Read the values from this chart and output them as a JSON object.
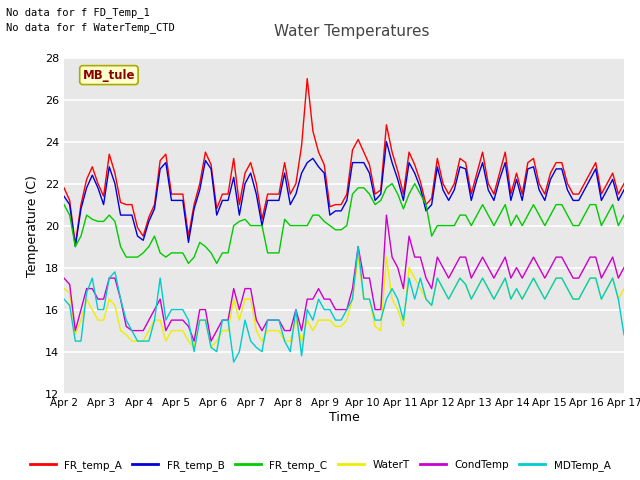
{
  "title": "Water Temperatures",
  "xlabel": "Time",
  "ylabel": "Temperature (C)",
  "ylim": [
    12,
    28
  ],
  "background_color": "#e8e8e8",
  "annotations": [
    "No data for f FD_Temp_1",
    "No data for f WaterTemp_CTD"
  ],
  "mb_tule_label": "MB_tule",
  "x_tick_labels": [
    "Apr 2",
    "Apr 3",
    "Apr 4",
    "Apr 5",
    "Apr 6",
    "Apr 7",
    "Apr 8",
    "Apr 9",
    "Apr 10",
    "Apr 11",
    "Apr 12",
    "Apr 13",
    "Apr 14",
    "Apr 15",
    "Apr 16",
    "Apr 17"
  ],
  "series": {
    "FR_temp_A": {
      "color": "#ff0000",
      "values": [
        21.8,
        21.2,
        19.1,
        21.0,
        22.2,
        22.8,
        22.0,
        21.4,
        23.4,
        22.5,
        21.1,
        21.0,
        21.0,
        19.9,
        19.5,
        20.4,
        21.0,
        23.1,
        23.4,
        21.5,
        21.5,
        21.5,
        19.5,
        21.0,
        22.0,
        23.5,
        22.9,
        20.8,
        21.5,
        21.5,
        23.2,
        21.0,
        22.5,
        23.0,
        22.0,
        20.3,
        21.5,
        21.5,
        21.5,
        23.0,
        21.5,
        22.0,
        23.8,
        27.0,
        24.5,
        23.5,
        22.9,
        20.9,
        21.0,
        21.0,
        21.5,
        23.6,
        24.1,
        23.5,
        22.9,
        21.5,
        21.7,
        24.8,
        23.5,
        22.6,
        21.5,
        23.5,
        22.9,
        22.1,
        21.0,
        21.3,
        23.2,
        22.0,
        21.5,
        22.0,
        23.2,
        23.0,
        21.5,
        22.5,
        23.5,
        22.0,
        21.5,
        22.5,
        23.5,
        21.5,
        22.5,
        21.5,
        23.0,
        23.2,
        22.0,
        21.5,
        22.5,
        23.0,
        23.0,
        22.0,
        21.5,
        21.5,
        22.0,
        22.5,
        23.0,
        21.5,
        22.0,
        22.5,
        21.5,
        22.0
      ]
    },
    "FR_temp_B": {
      "color": "#0000dd",
      "values": [
        21.4,
        21.0,
        19.0,
        20.8,
        21.8,
        22.4,
        21.8,
        21.0,
        22.8,
        22.0,
        20.5,
        20.5,
        20.5,
        19.5,
        19.3,
        20.2,
        20.8,
        22.7,
        23.0,
        21.2,
        21.2,
        21.2,
        19.2,
        20.8,
        21.7,
        23.1,
        22.7,
        20.5,
        21.2,
        21.2,
        22.3,
        20.5,
        22.0,
        22.5,
        21.5,
        20.0,
        21.2,
        21.2,
        21.2,
        22.5,
        21.0,
        21.5,
        22.5,
        23.0,
        23.2,
        22.8,
        22.5,
        20.5,
        20.7,
        20.7,
        21.2,
        23.0,
        23.0,
        23.0,
        22.5,
        21.2,
        21.5,
        24.0,
        23.0,
        22.2,
        21.2,
        23.0,
        22.5,
        21.8,
        20.7,
        21.0,
        22.8,
        21.7,
        21.2,
        21.7,
        22.8,
        22.7,
        21.2,
        22.2,
        23.0,
        21.7,
        21.2,
        22.2,
        23.0,
        21.2,
        22.2,
        21.2,
        22.7,
        22.8,
        21.7,
        21.2,
        22.2,
        22.7,
        22.7,
        21.7,
        21.2,
        21.2,
        21.7,
        22.2,
        22.7,
        21.2,
        21.7,
        22.2,
        21.2,
        21.7
      ]
    },
    "FR_temp_C": {
      "color": "#00cc00",
      "values": [
        21.0,
        20.5,
        19.0,
        19.5,
        20.5,
        20.3,
        20.2,
        20.2,
        20.5,
        20.2,
        19.0,
        18.5,
        18.5,
        18.5,
        18.7,
        19.0,
        19.5,
        18.7,
        18.5,
        18.7,
        18.7,
        18.7,
        18.2,
        18.5,
        19.2,
        19.0,
        18.7,
        18.2,
        18.7,
        18.7,
        20.0,
        20.2,
        20.3,
        20.0,
        20.0,
        20.0,
        18.7,
        18.7,
        18.7,
        20.3,
        20.0,
        20.0,
        20.0,
        20.0,
        20.5,
        20.5,
        20.2,
        20.0,
        19.8,
        19.8,
        20.0,
        21.5,
        21.8,
        21.8,
        21.5,
        21.0,
        21.2,
        21.8,
        22.0,
        21.5,
        20.8,
        21.5,
        22.0,
        21.5,
        21.0,
        19.5,
        20.0,
        20.0,
        20.0,
        20.0,
        20.5,
        20.5,
        20.0,
        20.5,
        21.0,
        20.5,
        20.0,
        20.5,
        21.0,
        20.0,
        20.5,
        20.0,
        20.5,
        21.0,
        20.5,
        20.0,
        20.5,
        21.0,
        21.0,
        20.5,
        20.0,
        20.0,
        20.5,
        21.0,
        21.0,
        20.0,
        20.5,
        21.0,
        20.0,
        20.5
      ]
    },
    "WaterT": {
      "color": "#eeee00",
      "values": [
        17.0,
        16.8,
        14.8,
        15.5,
        16.5,
        16.0,
        15.5,
        15.5,
        16.5,
        16.2,
        15.0,
        14.8,
        14.5,
        14.5,
        14.5,
        15.0,
        15.5,
        15.5,
        14.5,
        15.0,
        15.0,
        15.0,
        14.5,
        14.2,
        15.5,
        15.5,
        14.2,
        14.5,
        15.0,
        15.0,
        16.5,
        15.5,
        16.5,
        16.5,
        15.0,
        14.5,
        15.0,
        15.0,
        15.0,
        14.5,
        14.5,
        15.5,
        14.5,
        15.5,
        15.0,
        15.5,
        15.5,
        15.5,
        15.2,
        15.2,
        15.5,
        16.5,
        18.5,
        16.5,
        16.5,
        15.2,
        15.0,
        18.5,
        16.5,
        16.0,
        15.2,
        18.0,
        17.5,
        17.0,
        16.5,
        16.2,
        17.5,
        17.0,
        16.5,
        17.0,
        17.5,
        17.2,
        16.5,
        17.0,
        17.5,
        17.0,
        16.5,
        17.0,
        17.5,
        16.5,
        17.0,
        16.5,
        17.0,
        17.5,
        17.0,
        16.5,
        17.0,
        17.5,
        17.5,
        17.0,
        16.5,
        16.5,
        17.0,
        17.5,
        17.5,
        16.5,
        17.0,
        17.5,
        16.5,
        17.0
      ]
    },
    "CondTemp": {
      "color": "#cc00cc",
      "values": [
        17.5,
        17.2,
        15.0,
        16.0,
        17.0,
        17.0,
        16.5,
        16.5,
        17.5,
        17.5,
        16.5,
        15.2,
        15.0,
        15.0,
        15.0,
        15.5,
        16.0,
        16.5,
        15.0,
        15.5,
        15.5,
        15.5,
        15.2,
        14.5,
        16.0,
        16.0,
        14.5,
        15.0,
        15.5,
        15.5,
        17.0,
        16.0,
        17.0,
        17.0,
        15.5,
        15.0,
        15.5,
        15.5,
        15.5,
        15.0,
        15.0,
        16.0,
        15.0,
        16.5,
        16.5,
        17.0,
        16.5,
        16.5,
        16.0,
        16.0,
        16.0,
        17.0,
        19.0,
        17.5,
        17.5,
        16.0,
        16.0,
        20.5,
        18.5,
        18.0,
        17.0,
        19.5,
        18.5,
        18.5,
        17.5,
        17.0,
        18.5,
        18.0,
        17.5,
        18.0,
        18.5,
        18.5,
        17.5,
        18.0,
        18.5,
        18.0,
        17.5,
        18.0,
        18.5,
        17.5,
        18.0,
        17.5,
        18.0,
        18.5,
        18.0,
        17.5,
        18.0,
        18.5,
        18.5,
        18.0,
        17.5,
        17.5,
        18.0,
        18.5,
        18.5,
        17.5,
        18.0,
        18.5,
        17.5,
        18.0
      ]
    },
    "MDTemp_A": {
      "color": "#00cccc",
      "values": [
        16.5,
        16.2,
        14.5,
        14.5,
        16.8,
        17.5,
        16.0,
        16.0,
        17.5,
        17.8,
        16.5,
        15.5,
        15.0,
        14.5,
        14.5,
        14.5,
        15.5,
        17.5,
        15.5,
        16.0,
        16.0,
        16.0,
        15.5,
        14.0,
        15.5,
        15.5,
        14.2,
        14.0,
        15.5,
        15.5,
        13.5,
        14.0,
        15.5,
        14.5,
        14.2,
        14.0,
        15.5,
        15.5,
        15.5,
        14.5,
        14.0,
        16.0,
        13.8,
        16.0,
        15.5,
        16.5,
        16.0,
        16.0,
        15.5,
        15.5,
        16.0,
        16.5,
        19.0,
        16.5,
        16.5,
        15.5,
        15.5,
        16.5,
        17.0,
        16.5,
        15.5,
        17.5,
        16.5,
        17.5,
        16.5,
        16.2,
        17.5,
        17.0,
        16.5,
        17.0,
        17.5,
        17.2,
        16.5,
        17.0,
        17.5,
        17.0,
        16.5,
        17.0,
        17.5,
        16.5,
        17.0,
        16.5,
        17.0,
        17.5,
        17.0,
        16.5,
        17.0,
        17.5,
        17.5,
        17.0,
        16.5,
        16.5,
        17.0,
        17.5,
        17.5,
        16.5,
        17.0,
        17.5,
        16.5,
        14.8
      ]
    }
  },
  "legend_entries": [
    {
      "label": "FR_temp_A",
      "color": "#ff0000"
    },
    {
      "label": "FR_temp_B",
      "color": "#0000dd"
    },
    {
      "label": "FR_temp_C",
      "color": "#00cc00"
    },
    {
      "label": "WaterT",
      "color": "#eeee00"
    },
    {
      "label": "CondTemp",
      "color": "#cc00cc"
    },
    {
      "label": "MDTemp_A",
      "color": "#00cccc"
    }
  ]
}
